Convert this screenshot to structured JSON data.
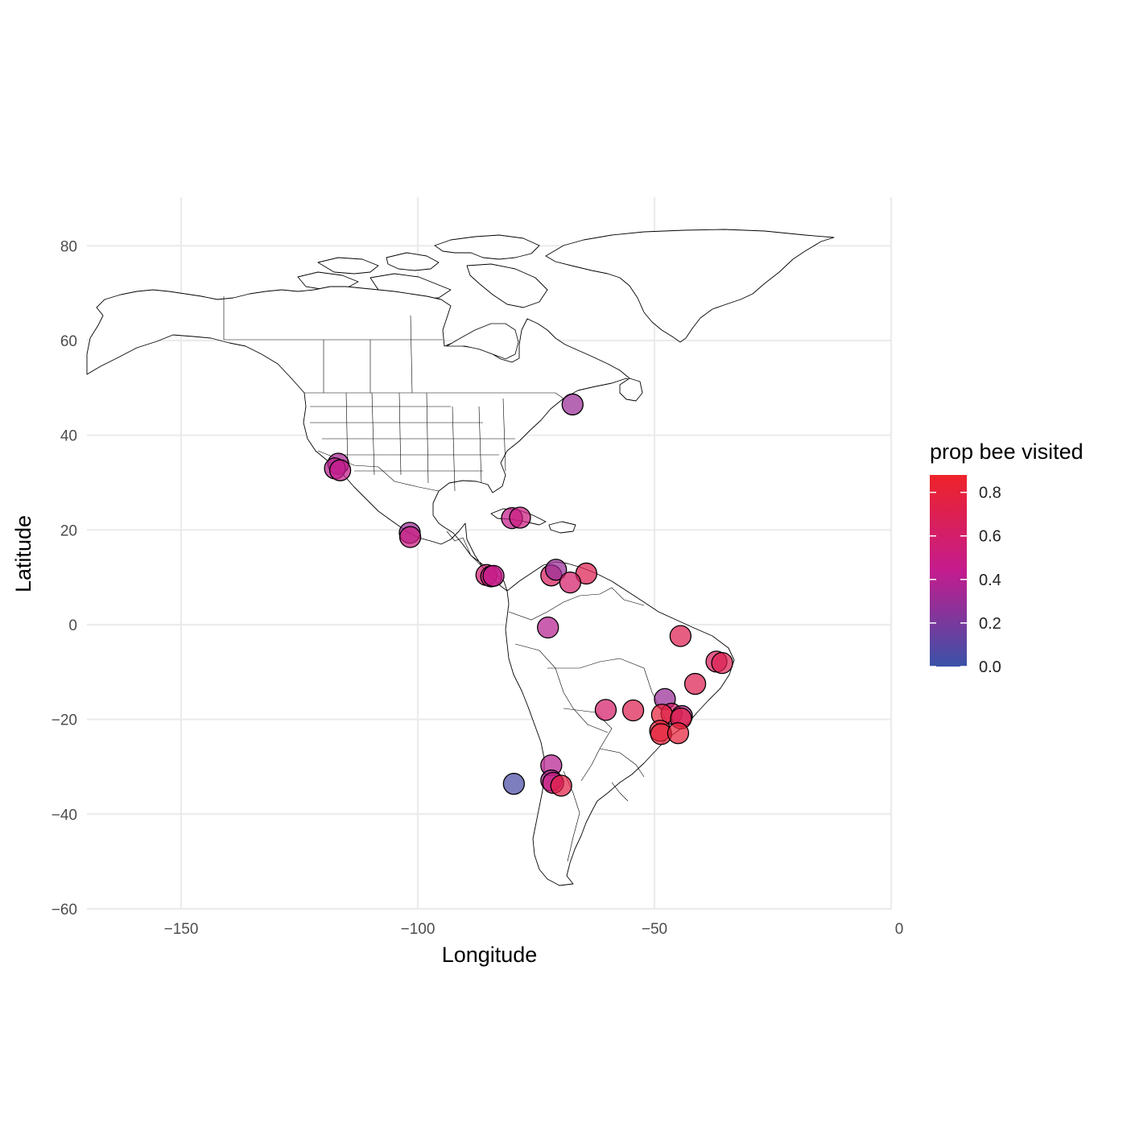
{
  "chart_data": {
    "type": "scatter",
    "xlabel": "Longitude",
    "ylabel": "Latitude",
    "xlim": [
      -170,
      0
    ],
    "ylim": [
      -60,
      90
    ],
    "x_ticks": [
      -150,
      -100,
      -50,
      0
    ],
    "y_ticks": [
      80,
      60,
      40,
      20,
      0,
      -20,
      -40,
      -60
    ],
    "x_tick_labels": [
      "−150",
      "−100",
      "−50",
      "0"
    ],
    "y_tick_labels": [
      "80",
      "60",
      "40",
      "20",
      "0",
      "−20",
      "−40",
      "−60"
    ],
    "grid": true,
    "legend": {
      "title": "prop bee visited",
      "placement": "right",
      "ticks": [
        0.8,
        0.6,
        0.4,
        0.2,
        0.0
      ],
      "tick_labels": [
        "0.8",
        "0.6",
        "0.4",
        "0.2",
        "0.0"
      ],
      "range": [
        0,
        0.88
      ],
      "colors": {
        "low": "#3a52a8",
        "mid": "#c41c8e",
        "high": "#ee2329"
      }
    },
    "points": [
      {
        "lon": -67.3,
        "lat": 46.5,
        "value": 0.3
      },
      {
        "lon": -116.8,
        "lat": 34.0,
        "value": 0.35
      },
      {
        "lon": -117.5,
        "lat": 33.0,
        "value": 0.4
      },
      {
        "lon": -116.4,
        "lat": 32.6,
        "value": 0.45
      },
      {
        "lon": -101.7,
        "lat": 19.4,
        "value": 0.3
      },
      {
        "lon": -101.6,
        "lat": 18.5,
        "value": 0.5
      },
      {
        "lon": -80.1,
        "lat": 22.5,
        "value": 0.45
      },
      {
        "lon": -78.4,
        "lat": 22.6,
        "value": 0.5
      },
      {
        "lon": -85.5,
        "lat": 10.5,
        "value": 0.55
      },
      {
        "lon": -84.5,
        "lat": 10.2,
        "value": 0.5
      },
      {
        "lon": -84.0,
        "lat": 10.3,
        "value": 0.45
      },
      {
        "lon": -71.8,
        "lat": 10.4,
        "value": 0.65
      },
      {
        "lon": -70.8,
        "lat": 11.6,
        "value": 0.3
      },
      {
        "lon": -64.4,
        "lat": 10.8,
        "value": 0.7
      },
      {
        "lon": -67.8,
        "lat": 8.9,
        "value": 0.6
      },
      {
        "lon": -72.5,
        "lat": -0.6,
        "value": 0.4
      },
      {
        "lon": -44.5,
        "lat": -2.4,
        "value": 0.7
      },
      {
        "lon": -36.9,
        "lat": -7.8,
        "value": 0.65
      },
      {
        "lon": -35.7,
        "lat": -8.1,
        "value": 0.7
      },
      {
        "lon": -41.4,
        "lat": -12.5,
        "value": 0.7
      },
      {
        "lon": -47.8,
        "lat": -15.7,
        "value": 0.3
      },
      {
        "lon": -60.3,
        "lat": -18.0,
        "value": 0.6
      },
      {
        "lon": -54.5,
        "lat": -18.1,
        "value": 0.7
      },
      {
        "lon": -46.4,
        "lat": -18.8,
        "value": 0.6
      },
      {
        "lon": -48.4,
        "lat": -19.0,
        "value": 0.8
      },
      {
        "lon": -44.2,
        "lat": -19.3,
        "value": 0.4
      },
      {
        "lon": -44.4,
        "lat": -19.8,
        "value": 0.75
      },
      {
        "lon": -48.8,
        "lat": -22.4,
        "value": 0.8
      },
      {
        "lon": -48.6,
        "lat": -23.1,
        "value": 0.8
      },
      {
        "lon": -45.0,
        "lat": -22.9,
        "value": 0.8
      },
      {
        "lon": -71.8,
        "lat": -29.7,
        "value": 0.4
      },
      {
        "lon": -79.7,
        "lat": -33.6,
        "value": 0.05
      },
      {
        "lon": -71.8,
        "lat": -32.9,
        "value": 0.35
      },
      {
        "lon": -71.4,
        "lat": -33.4,
        "value": 0.5
      },
      {
        "lon": -69.7,
        "lat": -34.0,
        "value": 0.75
      }
    ]
  }
}
